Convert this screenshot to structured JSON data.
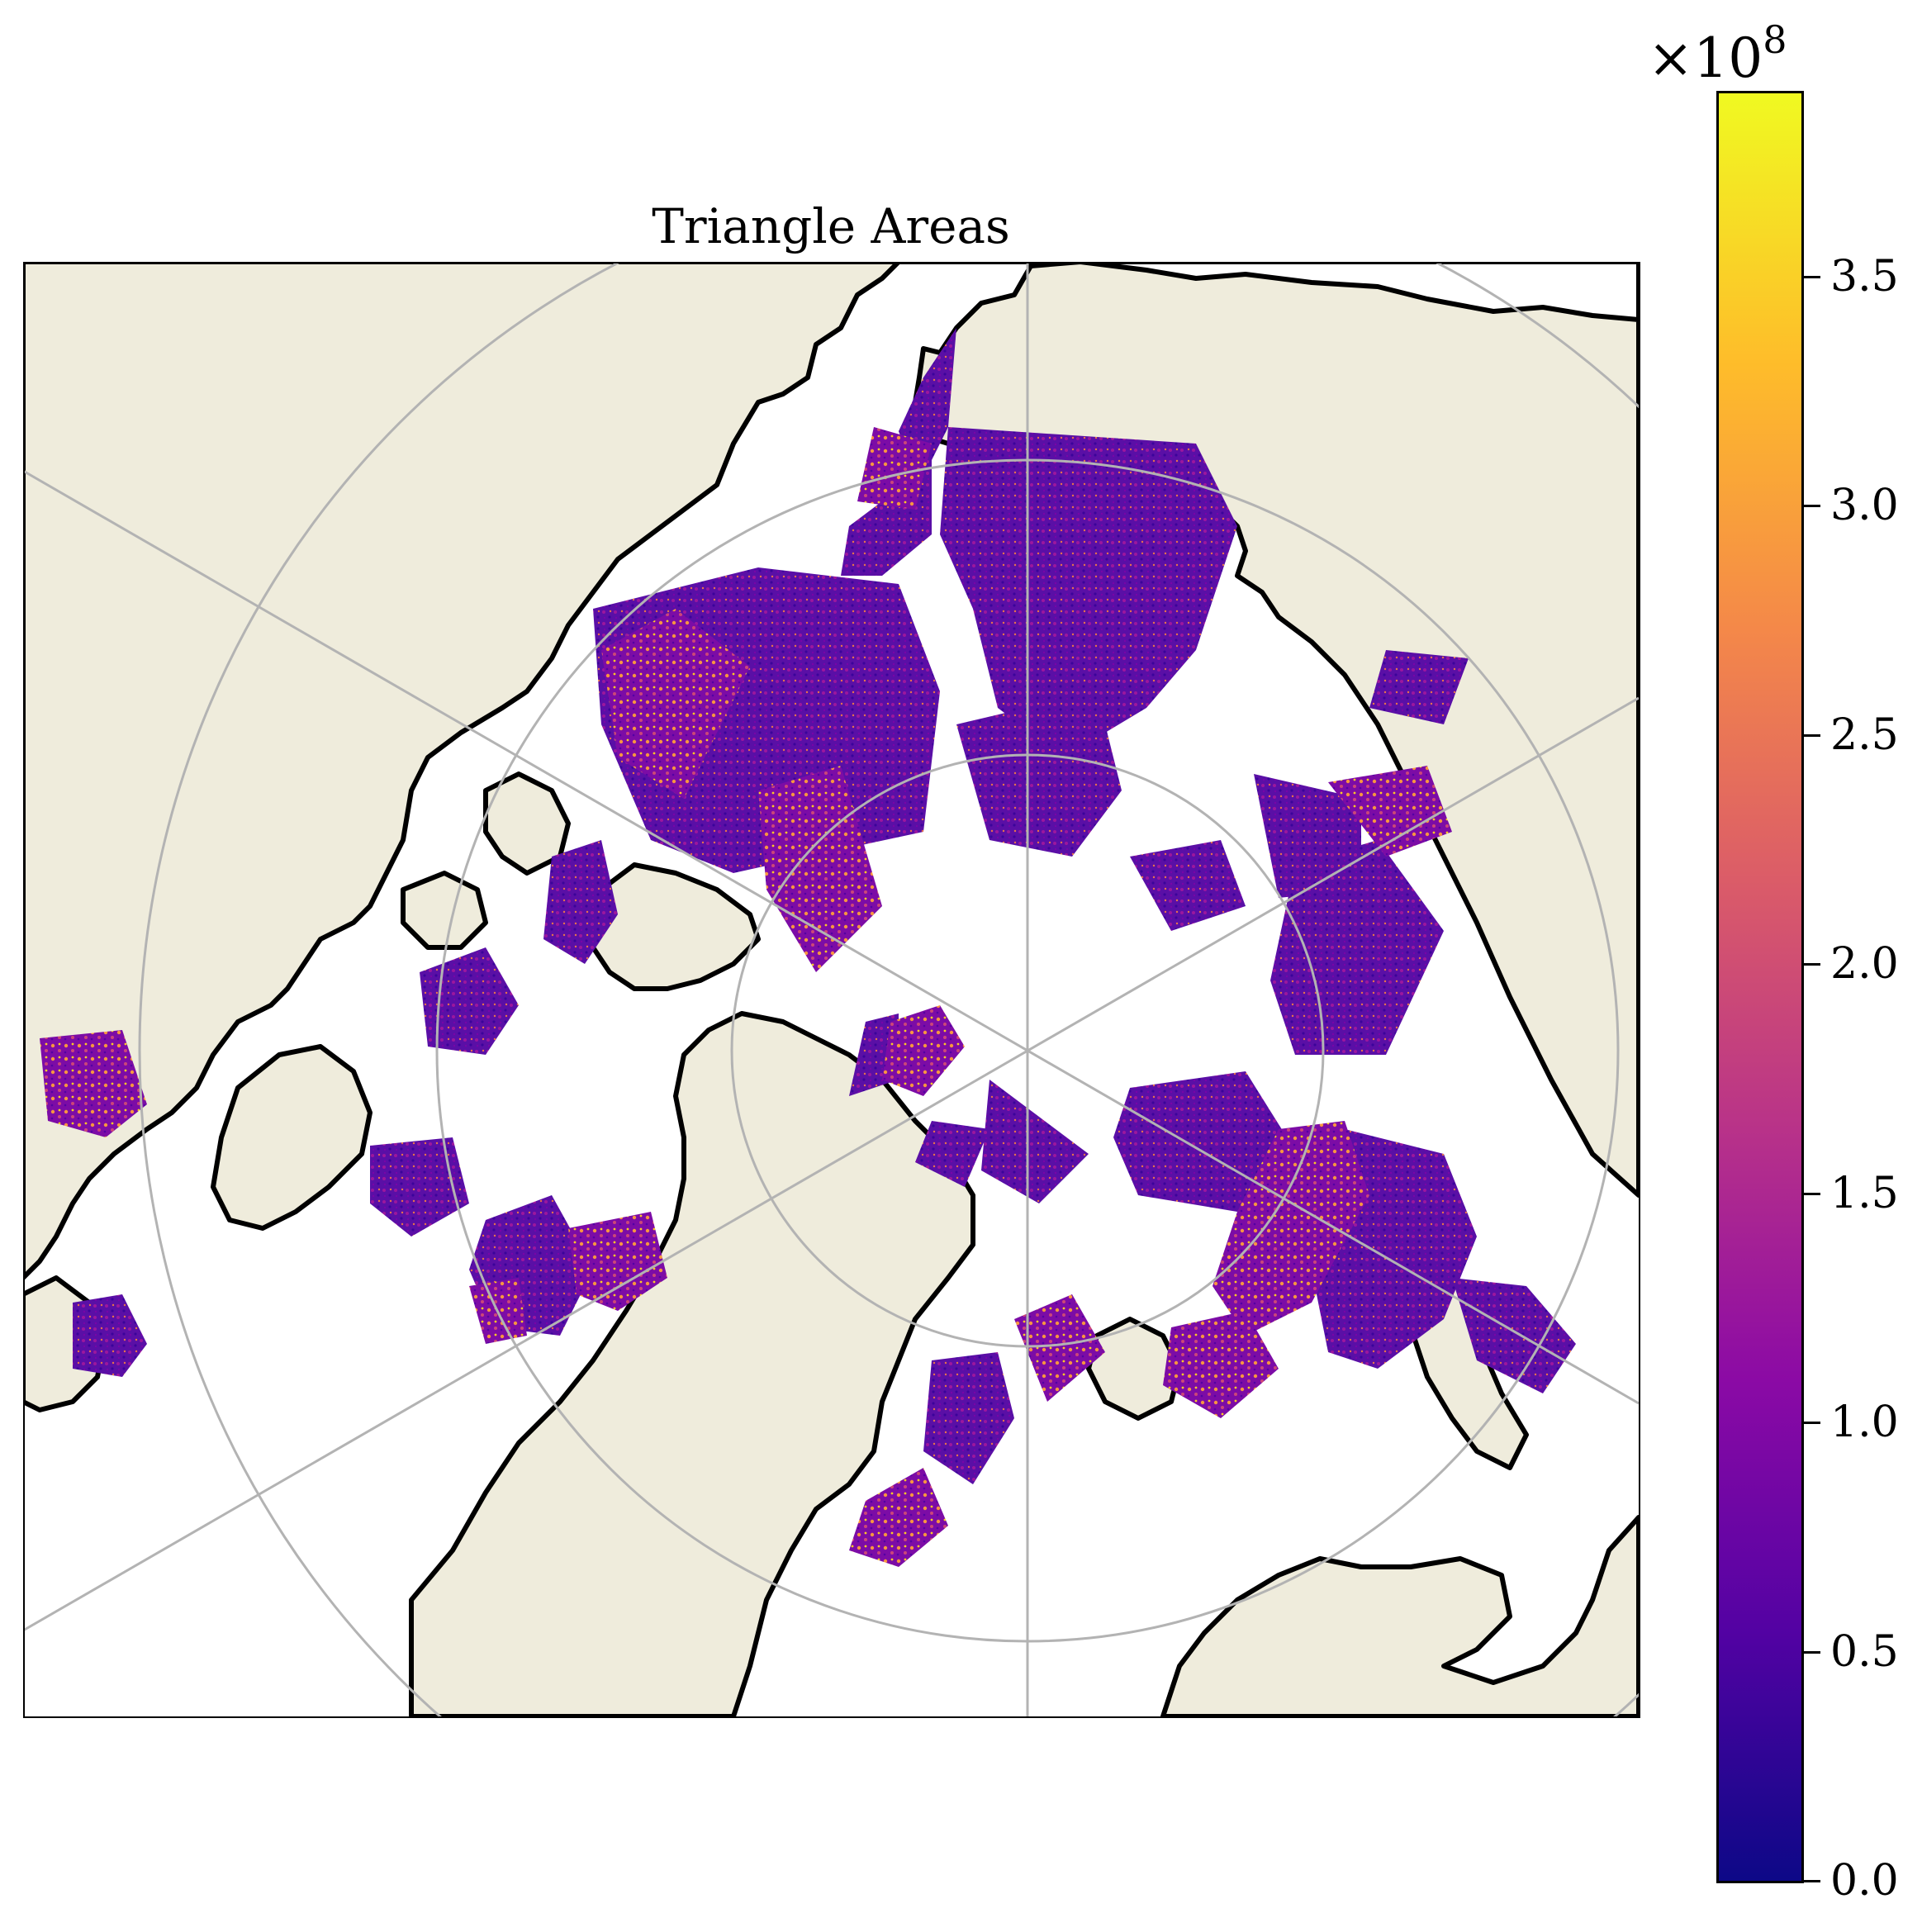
{
  "title": "Triangle Areas",
  "map": {
    "projection": "north polar stereographic",
    "land_color": "#efecdc",
    "coastline_color": "#000000",
    "gridline_color": "#b3b3b3",
    "field": "triangle area"
  },
  "colorbar": {
    "colormap": "plasma",
    "colors": [
      "#0d0887",
      "#5302a3",
      "#8b0aa5",
      "#b83289",
      "#db5c68",
      "#f48849",
      "#febd2a",
      "#f0f921"
    ],
    "multiplier_prefix": "×10",
    "multiplier_exponent": "8",
    "range": [
      0.0,
      3.9
    ],
    "ticks": [
      {
        "value": 0.0,
        "label": "0.0"
      },
      {
        "value": 0.5,
        "label": "0.5"
      },
      {
        "value": 1.0,
        "label": "1.0"
      },
      {
        "value": 1.5,
        "label": "1.5"
      },
      {
        "value": 2.0,
        "label": "2.0"
      },
      {
        "value": 2.5,
        "label": "2.5"
      },
      {
        "value": 3.0,
        "label": "3.0"
      },
      {
        "value": 3.5,
        "label": "3.5"
      }
    ]
  }
}
